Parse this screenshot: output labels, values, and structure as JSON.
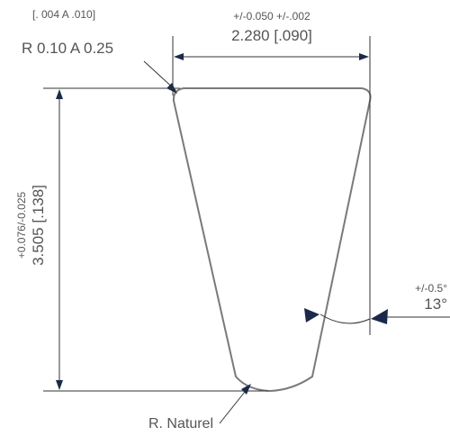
{
  "corner_radius": {
    "inch": "[. 004 A .010]",
    "mm": "R 0.10 A 0.25"
  },
  "width": {
    "tolerance": "+/-0.050  +/-.002",
    "value": "2.280 [.090]"
  },
  "height": {
    "tolerance": "+0.076/-0.025",
    "value": "3.505 [.138]"
  },
  "angle": {
    "tolerance": "+/-0.5°",
    "value": "13°"
  },
  "bottom_radius": {
    "label": "R. Naturel"
  },
  "colors": {
    "text": "#555555",
    "lines": "#333333",
    "arrows": "#1b2a4a",
    "profile": "#7a7a7a"
  }
}
